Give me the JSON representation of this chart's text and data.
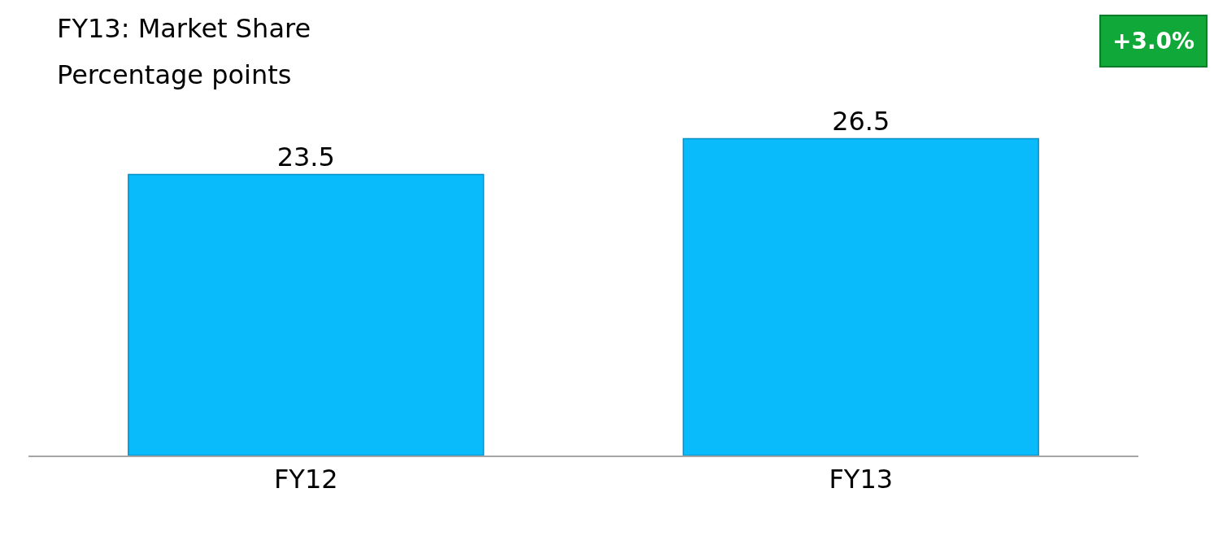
{
  "chart_data": {
    "type": "bar",
    "title": "FY13: Market Share",
    "subtitle": "Percentage points",
    "categories": [
      "FY12",
      "FY13"
    ],
    "values": [
      23.5,
      26.5
    ],
    "color": "#09bbfb",
    "data_labels": true,
    "tick_labels": "x",
    "annotations": [
      "+3.0%"
    ]
  }
}
